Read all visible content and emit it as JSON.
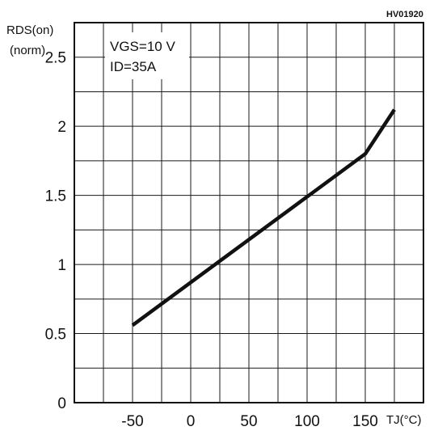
{
  "chart_data": {
    "type": "line",
    "code": "HV01920",
    "ylabel_line1": "RDS(on)",
    "ylabel_line2": "(norm)",
    "xlabel": "TJ(°C)",
    "annotation_line1": "VGS=10 V",
    "annotation_line2": "ID=35A",
    "xlim": [
      -100,
      200
    ],
    "ylim": [
      0,
      2.75
    ],
    "x_ticks": [
      -50,
      0,
      50,
      100,
      150
    ],
    "y_ticks": [
      0,
      0.5,
      1,
      1.5,
      2,
      2.5
    ],
    "x_tick_labels": [
      "-50",
      "0",
      "50",
      "100",
      "150"
    ],
    "y_tick_labels": [
      "0",
      "0.5",
      "1",
      "1.5",
      "2",
      "2.5"
    ],
    "grid": true,
    "series": [
      {
        "x": [
          -50,
          0,
          50,
          100,
          150,
          175
        ],
        "y": [
          0.56,
          0.87,
          1.18,
          1.49,
          1.8,
          2.12
        ]
      }
    ]
  }
}
